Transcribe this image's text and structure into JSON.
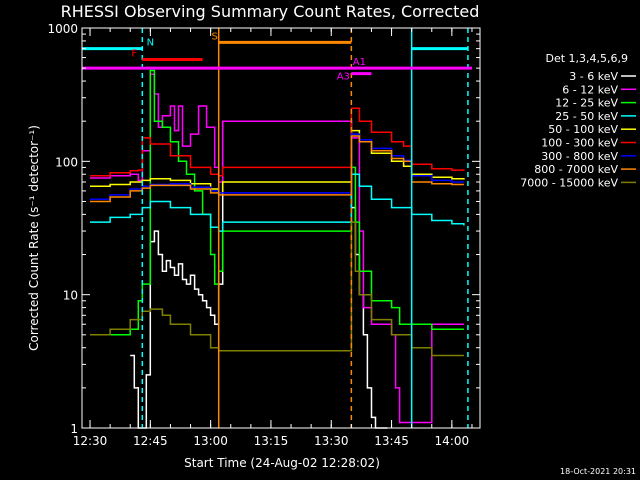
{
  "chart_data": {
    "type": "line",
    "title": "RHESSI Observing Summary Count Rates, Corrected",
    "xlabel": "Start Time (24-Aug-02 12:28:02)",
    "ylabel": "Corrected Count Rate (s⁻¹ detector⁻¹)",
    "y_scale": "log",
    "ylim": [
      1,
      1000
    ],
    "xlim": [
      "12:28",
      "14:07"
    ],
    "x_tick_labels": [
      "12:30",
      "12:45",
      "13:00",
      "13:15",
      "13:30",
      "13:45",
      "14:00"
    ],
    "y_tick_labels": [
      "1",
      "10",
      "100",
      "1000"
    ],
    "legend_title": "Det 1,3,4,5,6,9",
    "legend_position": "right",
    "footer": "18-Oct-2021 20:31",
    "series": [
      {
        "name": "3 - 6 keV",
        "color": "#ffffff",
        "points": [
          [
            "12:40",
            3.5
          ],
          [
            "12:41",
            2
          ],
          [
            "12:42",
            1
          ],
          [
            "12:43",
            1
          ],
          [
            "12:44",
            2.5
          ],
          [
            "12:45",
            25
          ],
          [
            "12:46",
            30
          ],
          [
            "12:47",
            20
          ],
          [
            "12:48",
            15
          ],
          [
            "12:49",
            18
          ],
          [
            "12:50",
            16
          ],
          [
            "12:51",
            14
          ],
          [
            "12:52",
            17
          ],
          [
            "12:53",
            13
          ],
          [
            "12:54",
            12
          ],
          [
            "12:55",
            14
          ],
          [
            "12:56",
            11
          ],
          [
            "12:57",
            10
          ],
          [
            "12:58",
            9
          ],
          [
            "12:59",
            8
          ],
          [
            "13:00",
            7
          ],
          [
            "13:01",
            6
          ],
          [
            "13:02",
            12
          ],
          [
            "13:03",
            200
          ],
          [
            "13:35",
            45
          ],
          [
            "13:36",
            20
          ],
          [
            "13:37",
            10
          ],
          [
            "13:38",
            5
          ],
          [
            "13:39",
            2
          ],
          [
            "13:40",
            1.2
          ],
          [
            "13:41",
            1
          ],
          [
            "13:44",
            1
          ]
        ]
      },
      {
        "name": "6 - 12 keV",
        "color": "#ff00ff",
        "points": [
          [
            "12:30",
            75
          ],
          [
            "12:35",
            78
          ],
          [
            "12:40",
            80
          ],
          [
            "12:42",
            72
          ],
          [
            "12:43",
            120
          ],
          [
            "12:45",
            450
          ],
          [
            "12:46",
            320
          ],
          [
            "12:47",
            180
          ],
          [
            "12:48",
            220
          ],
          [
            "12:50",
            260
          ],
          [
            "12:51",
            170
          ],
          [
            "12:52",
            260
          ],
          [
            "12:53",
            130
          ],
          [
            "12:55",
            160
          ],
          [
            "12:57",
            260
          ],
          [
            "12:59",
            180
          ],
          [
            "13:01",
            90
          ],
          [
            "13:02",
            70
          ],
          [
            "13:03",
            200
          ],
          [
            "13:35",
            150
          ],
          [
            "13:37",
            30
          ],
          [
            "13:38",
            8
          ],
          [
            "13:40",
            6
          ],
          [
            "13:45",
            5
          ],
          [
            "13:46",
            2
          ],
          [
            "13:47",
            1.1
          ],
          [
            "13:55",
            6
          ],
          [
            "14:00",
            6
          ],
          [
            "14:03",
            6
          ]
        ]
      },
      {
        "name": "12 - 25 keV",
        "color": "#00ff00",
        "points": [
          [
            "12:30",
            5
          ],
          [
            "12:35",
            5
          ],
          [
            "12:40",
            5.5
          ],
          [
            "12:42",
            9
          ],
          [
            "12:43",
            12
          ],
          [
            "12:45",
            480
          ],
          [
            "12:46",
            200
          ],
          [
            "12:48",
            180
          ],
          [
            "12:50",
            140
          ],
          [
            "12:52",
            100
          ],
          [
            "12:54",
            80
          ],
          [
            "12:56",
            60
          ],
          [
            "12:58",
            40
          ],
          [
            "13:00",
            20
          ],
          [
            "13:01",
            12
          ],
          [
            "13:02",
            15
          ],
          [
            "13:03",
            30
          ],
          [
            "13:35",
            90
          ],
          [
            "13:36",
            35
          ],
          [
            "13:37",
            15
          ],
          [
            "13:40",
            9
          ],
          [
            "13:45",
            8
          ],
          [
            "13:47",
            6
          ],
          [
            "13:55",
            5.5
          ],
          [
            "14:03",
            5.5
          ]
        ]
      },
      {
        "name": "25 - 50 keV",
        "color": "#00ffff",
        "points": [
          [
            "12:30",
            35
          ],
          [
            "12:35",
            38
          ],
          [
            "12:40",
            40
          ],
          [
            "12:43",
            45
          ],
          [
            "12:45",
            50
          ],
          [
            "12:50",
            45
          ],
          [
            "12:55",
            40
          ],
          [
            "13:00",
            32
          ],
          [
            "13:02",
            30
          ],
          [
            "13:03",
            35
          ],
          [
            "13:35",
            80
          ],
          [
            "13:37",
            65
          ],
          [
            "13:40",
            52
          ],
          [
            "13:45",
            45
          ],
          [
            "13:50",
            40
          ],
          [
            "13:55",
            36
          ],
          [
            "14:00",
            34
          ],
          [
            "14:03",
            33
          ]
        ]
      },
      {
        "name": "50 - 100 keV",
        "color": "#ffff00",
        "points": [
          [
            "12:30",
            65
          ],
          [
            "12:35",
            67
          ],
          [
            "12:40",
            70
          ],
          [
            "12:43",
            72
          ],
          [
            "12:45",
            74
          ],
          [
            "12:50",
            72
          ],
          [
            "12:55",
            68
          ],
          [
            "13:00",
            62
          ],
          [
            "13:02",
            58
          ],
          [
            "13:03",
            70
          ],
          [
            "13:35",
            170
          ],
          [
            "13:37",
            140
          ],
          [
            "13:40",
            115
          ],
          [
            "13:45",
            100
          ],
          [
            "13:48",
            92
          ],
          [
            "13:50",
            80
          ],
          [
            "13:55",
            76
          ],
          [
            "14:00",
            74
          ],
          [
            "14:03",
            73
          ]
        ]
      },
      {
        "name": "100 - 300 keV",
        "color": "#ff0000",
        "points": [
          [
            "12:30",
            78
          ],
          [
            "12:35",
            82
          ],
          [
            "12:40",
            85
          ],
          [
            "12:42",
            86
          ],
          [
            "12:43",
            150
          ],
          [
            "12:45",
            135
          ],
          [
            "12:50",
            110
          ],
          [
            "12:55",
            90
          ],
          [
            "13:00",
            80
          ],
          [
            "13:02",
            78
          ],
          [
            "13:03",
            90
          ],
          [
            "13:35",
            250
          ],
          [
            "13:37",
            200
          ],
          [
            "13:40",
            165
          ],
          [
            "13:45",
            140
          ],
          [
            "13:48",
            130
          ],
          [
            "13:50",
            95
          ],
          [
            "13:55",
            88
          ],
          [
            "14:00",
            86
          ],
          [
            "14:03",
            85
          ]
        ]
      },
      {
        "name": "300 - 800 keV",
        "color": "#0000ff",
        "points": [
          [
            "12:30",
            52
          ],
          [
            "12:35",
            56
          ],
          [
            "12:40",
            62
          ],
          [
            "12:43",
            65
          ],
          [
            "12:45",
            67
          ],
          [
            "12:50",
            68
          ],
          [
            "12:55",
            64
          ],
          [
            "13:00",
            60
          ],
          [
            "13:02",
            58
          ],
          [
            "13:35",
            160
          ],
          [
            "13:37",
            145
          ],
          [
            "13:40",
            125
          ],
          [
            "13:45",
            110
          ],
          [
            "13:48",
            102
          ],
          [
            "13:50",
            78
          ],
          [
            "13:55",
            72
          ],
          [
            "14:00",
            70
          ],
          [
            "14:03",
            70
          ]
        ]
      },
      {
        "name": "800 - 7000 keV",
        "color": "#ff8800",
        "points": [
          [
            "12:30",
            50
          ],
          [
            "12:35",
            54
          ],
          [
            "12:40",
            60
          ],
          [
            "12:43",
            63
          ],
          [
            "12:45",
            66
          ],
          [
            "12:50",
            66
          ],
          [
            "12:55",
            62
          ],
          [
            "13:00",
            58
          ],
          [
            "13:02",
            56
          ],
          [
            "13:35",
            155
          ],
          [
            "13:37",
            140
          ],
          [
            "13:40",
            120
          ],
          [
            "13:45",
            105
          ],
          [
            "13:48",
            100
          ],
          [
            "13:50",
            70
          ],
          [
            "13:55",
            68
          ],
          [
            "14:00",
            67
          ],
          [
            "14:03",
            67
          ]
        ]
      },
      {
        "name": "7000 - 15000 keV",
        "color": "#808000",
        "points": [
          [
            "12:30",
            5
          ],
          [
            "12:35",
            5.5
          ],
          [
            "12:40",
            6.5
          ],
          [
            "12:43",
            7.5
          ],
          [
            "12:45",
            7.8
          ],
          [
            "12:48",
            7
          ],
          [
            "12:50",
            6
          ],
          [
            "12:55",
            5
          ],
          [
            "13:00",
            4
          ],
          [
            "13:02",
            3.8
          ],
          [
            "13:35",
            35
          ],
          [
            "13:36",
            15
          ],
          [
            "13:37",
            10
          ],
          [
            "13:40",
            6.5
          ],
          [
            "13:45",
            5
          ],
          [
            "13:50",
            4
          ],
          [
            "13:55",
            3.5
          ],
          [
            "14:03",
            3.5
          ]
        ]
      }
    ],
    "vertical_lines": [
      {
        "x": "12:43",
        "color": "#00ffff",
        "style": "dashed"
      },
      {
        "x": "13:02",
        "color": "#ff8800",
        "style": "solid"
      },
      {
        "x": "13:35",
        "color": "#ff8800",
        "style": "dashed"
      },
      {
        "x": "13:50",
        "color": "#00ffff",
        "style": "solid"
      },
      {
        "x": "14:04",
        "color": "#00ffff",
        "style": "dashed"
      }
    ],
    "annotation_bars": [
      {
        "label": "N",
        "color": "#00ffff",
        "y": 700,
        "segments": [
          [
            "12:28",
            "12:43"
          ],
          [
            "13:50",
            "14:04"
          ]
        ]
      },
      {
        "label": "S",
        "color": "#ff8800",
        "y": 780,
        "segments": [
          [
            "13:02",
            "13:35"
          ]
        ]
      },
      {
        "label": "F",
        "color": "#ff0000",
        "y": 580,
        "segments": [
          [
            "12:43",
            "12:58"
          ]
        ]
      },
      {
        "label": "A1",
        "color": "#ff00ff",
        "y": 500,
        "segments": [
          [
            "12:28",
            "14:05"
          ]
        ]
      },
      {
        "label": "A3",
        "color": "#ff00ff",
        "y": 455,
        "segments": [
          [
            "13:35",
            "13:40"
          ]
        ]
      }
    ]
  }
}
